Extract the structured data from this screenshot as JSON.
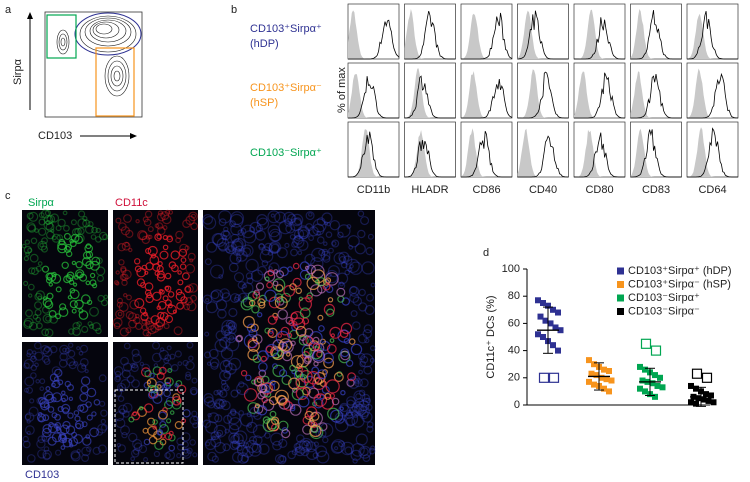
{
  "panel_a": {
    "label": "a",
    "y_label": "Sirpα",
    "x_label": "CD103"
  },
  "panel_b": {
    "label": "b",
    "y_label": "% of max",
    "rows": [
      {
        "label": "CD103⁺Sirpα⁺",
        "sublabel": "(hDP)",
        "color": "#2e3192"
      },
      {
        "label": "CD103⁺Sirpα⁻",
        "sublabel": "(hSP)",
        "color": "#f7941d"
      },
      {
        "label": "CD103⁻Sirpα⁺",
        "color": "#00a651"
      }
    ],
    "markers": [
      "CD11b",
      "HLADR",
      "CD86",
      "CD40",
      "CD80",
      "CD83",
      "CD64"
    ]
  },
  "panel_c": {
    "label": "c",
    "channels": [
      "Sirpα",
      "CD11c",
      "CD103"
    ]
  },
  "chart_data": {
    "type": "dot",
    "panel_label": "d",
    "y_label": "CD11c⁺ DCs (%)",
    "ylim": [
      0,
      100
    ],
    "yticks": [
      0,
      20,
      40,
      60,
      80,
      100
    ],
    "series": [
      {
        "name": "CD103⁺Sirpα⁺ (hDP)",
        "color": "#2e3192",
        "values": [
          77,
          75,
          73,
          70,
          68,
          65,
          62,
          60,
          57,
          55,
          52,
          50,
          47,
          44,
          40
        ],
        "outliers": [
          20,
          20
        ],
        "mean": 55,
        "sd": 17
      },
      {
        "name": "CD103⁺Sirpα⁻ (hSP)",
        "color": "#f7941d",
        "values": [
          33,
          30,
          28,
          26,
          25,
          23,
          22,
          20,
          19,
          18,
          17,
          15,
          14,
          12,
          10
        ],
        "mean": 21,
        "sd": 10
      },
      {
        "name": "CD103⁻Sirpα⁺",
        "color": "#00a651",
        "values": [
          28,
          26,
          24,
          22,
          20,
          18,
          17,
          16,
          14,
          13,
          12,
          10,
          8,
          6
        ],
        "outliers": [
          45,
          40
        ],
        "mean": 17,
        "sd": 10
      },
      {
        "name": "CD103⁻Sirpα⁻",
        "color": "#000000",
        "values": [
          14,
          12,
          10,
          8,
          7,
          6,
          5,
          4,
          3,
          2,
          2,
          1
        ],
        "outliers": [
          23,
          20
        ],
        "mean": 6,
        "sd": 7
      }
    ]
  }
}
